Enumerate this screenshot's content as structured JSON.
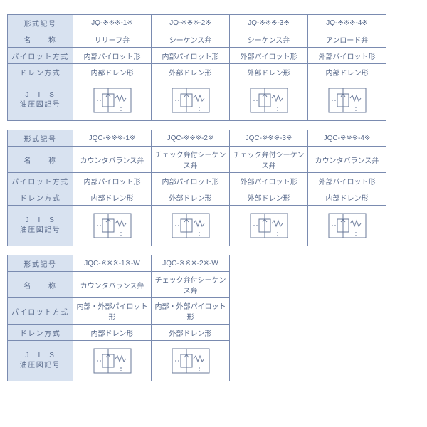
{
  "labels": {
    "model": "形式記号",
    "name": "名　　称",
    "pilot": "パイロット方式",
    "drain": "ドレン方式",
    "jis1": "J　I　S",
    "jis2": "油圧図記号"
  },
  "tables": [
    {
      "cols": 4,
      "rows": {
        "model": [
          "JQ-※※※-1※",
          "JQ-※※※-2※",
          "JQ-※※※-3※",
          "JQ-※※※-4※"
        ],
        "name": [
          "リリーフ弁",
          "シーケンス弁",
          "シーケンス弁",
          "アンロード弁"
        ],
        "pilot": [
          "内部パイロット形",
          "内部パイロット形",
          "外部パイロット形",
          "外部パイロット形"
        ],
        "drain": [
          "内部ドレン形",
          "外部ドレン形",
          "外部ドレン形",
          "内部ドレン形"
        ]
      }
    },
    {
      "cols": 4,
      "rows": {
        "model": [
          "JQC-※※※-1※",
          "JQC-※※※-2※",
          "JQC-※※※-3※",
          "JQC-※※※-4※"
        ],
        "name": [
          "カウンタバランス弁",
          "チェック弁付シーケンス弁",
          "チェック弁付シーケンス弁",
          "カウンタバランス弁"
        ],
        "pilot": [
          "内部パイロット形",
          "内部パイロット形",
          "外部パイロット形",
          "外部パイロット形"
        ],
        "drain": [
          "内部ドレン形",
          "外部ドレン形",
          "外部ドレン形",
          "内部ドレン形"
        ]
      }
    },
    {
      "cols": 2,
      "rows": {
        "model": [
          "JQC-※※※-1※-W",
          "JQC-※※※-2※-W"
        ],
        "name": [
          "カウンタバランス弁",
          "チェック弁付シーケンス弁"
        ],
        "pilot": [
          "内部・外部パイロット形",
          "内部・外部パイロット形"
        ],
        "drain": [
          "内部ドレン形",
          "外部ドレン形"
        ]
      }
    }
  ],
  "style": {
    "border_color": "#7a8bb0",
    "header_bg": "#d8e2f0",
    "text_color": "#5a6b8c",
    "symbol_stroke": "#6a7a9a",
    "font_size_pt": 10
  }
}
